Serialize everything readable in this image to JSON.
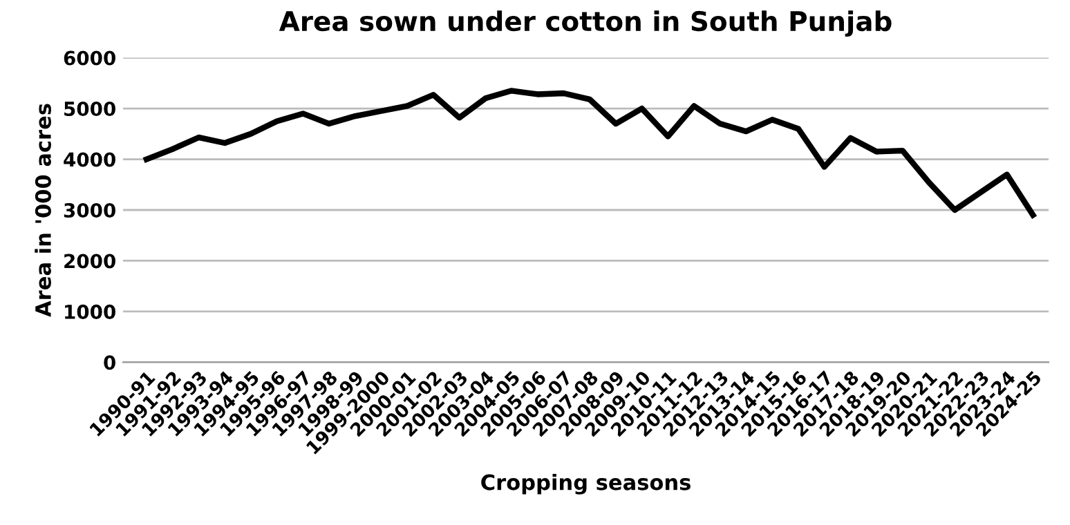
{
  "chart_data": {
    "type": "line",
    "title": "Area sown under cotton in South Punjab",
    "xlabel": "Cropping seasons",
    "ylabel": "Area in '000 acres",
    "categories": [
      "1990-91",
      "1991-92",
      "1992-93",
      "1993-94",
      "1994-95",
      "1995-96",
      "1996-97",
      "1997-98",
      "1998-99",
      "1999-2000",
      "2000-01",
      "2001-02",
      "2002-03",
      "2003-04",
      "2004-05",
      "2005-06",
      "2006-07",
      "2007-08",
      "2008-09",
      "2009-10",
      "2010-11",
      "2011-12",
      "2012-13",
      "2013-14",
      "2014-15",
      "2015-16",
      "2016-17",
      "2017-18",
      "2018-19",
      "2019-20",
      "2020-21",
      "2021-22",
      "2022-23",
      "2023-24",
      "2024-25"
    ],
    "series": [
      {
        "color": "#000000",
        "values": [
          4000,
          4200,
          4430,
          4320,
          4500,
          4750,
          4900,
          4700,
          4850,
          4950,
          5050,
          5270,
          4820,
          5200,
          5350,
          5280,
          5300,
          5180,
          4700,
          5000,
          4450,
          5050,
          4700,
          4550,
          4780,
          4600,
          3850,
          4420,
          4150,
          4170,
          3550,
          3000,
          3350,
          3700,
          2900
        ]
      }
    ],
    "ylim": [
      0,
      6000
    ],
    "yticks": [
      0,
      1000,
      2000,
      3000,
      4000,
      5000,
      6000
    ],
    "grid": "y",
    "legend": false,
    "marker": "none",
    "line_style": "solid"
  }
}
